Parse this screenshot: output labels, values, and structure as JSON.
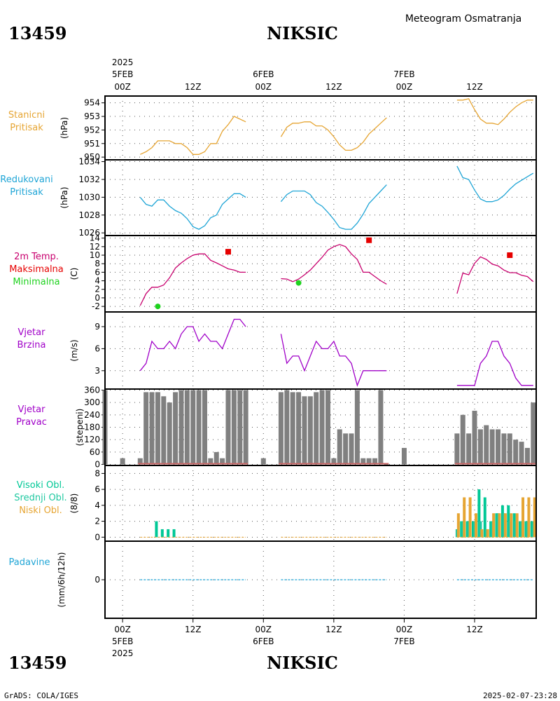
{
  "header": {
    "station_id": "13459",
    "station_name": "NIKSIC",
    "product": "Meteogram Osmatranja"
  },
  "time_axis": {
    "year": "2025",
    "days": [
      {
        "label": "5FEB",
        "hour": 0
      },
      {
        "label": "6FEB",
        "hour": 24
      },
      {
        "label": "7FEB",
        "hour": 48
      }
    ],
    "ticks": [
      {
        "label": "00Z",
        "hour": 0
      },
      {
        "label": "12Z",
        "hour": 12
      },
      {
        "label": "00Z",
        "hour": 24
      },
      {
        "label": "12Z",
        "hour": 36
      },
      {
        "label": "00Z",
        "hour": 48
      },
      {
        "label": "12Z",
        "hour": 60
      }
    ],
    "range_hours": [
      -3,
      70.5
    ]
  },
  "footer": {
    "left": "GrADS: COLA/IGES",
    "right": "2025-02-07-23:28"
  },
  "colors": {
    "pressure_station": "#e6a533",
    "pressure_reduced": "#1fa5d6",
    "temp_line": "#c8006e",
    "tmax": "#e60000",
    "tmin": "#1ed21e",
    "wind_speed": "#a000c8",
    "wind_dir": "#808080",
    "wind_base": "#c86464",
    "cloud_high": "#00c896",
    "cloud_mid": "#1ec8a0",
    "cloud_low": "#e6a533",
    "precip": "#1fa5d6",
    "grid": "#555555"
  },
  "chart_data": [
    {
      "id": "station_pressure",
      "type": "line",
      "title_lines": [
        "Stanicni",
        "Pritisak"
      ],
      "ylabel": "(hPa)",
      "ylim": [
        949.8,
        954.5
      ],
      "yticks": [
        950,
        951,
        952,
        953,
        954
      ],
      "series": [
        {
          "x": [
            3,
            4,
            5,
            6,
            7,
            8,
            9,
            10,
            11,
            12,
            13,
            14,
            15,
            16,
            17,
            18,
            19,
            20,
            21
          ],
          "y": [
            950.2,
            950.4,
            950.7,
            951.2,
            951.2,
            951.2,
            951.0,
            951.0,
            950.7,
            950.2,
            950.2,
            950.4,
            951.0,
            951.0,
            951.9,
            952.4,
            953.0,
            952.8,
            952.6
          ]
        },
        {
          "x": [
            27,
            28,
            29,
            30,
            31,
            32,
            33,
            34,
            35,
            36,
            37,
            38,
            39,
            40,
            41,
            42,
            43,
            44,
            45
          ],
          "y": [
            951.5,
            952.2,
            952.5,
            952.5,
            952.6,
            952.6,
            952.3,
            952.3,
            952.0,
            951.5,
            950.9,
            950.5,
            950.5,
            950.7,
            951.1,
            951.7,
            952.1,
            952.5,
            952.9
          ]
        },
        {
          "x": [
            57,
            58,
            59,
            60,
            61,
            62,
            63,
            64,
            65,
            66,
            67,
            68,
            69,
            70
          ],
          "y": [
            954.2,
            954.2,
            954.3,
            953.5,
            952.8,
            952.5,
            952.5,
            952.4,
            952.8,
            953.3,
            953.7,
            954.0,
            954.2,
            954.2
          ]
        }
      ]
    },
    {
      "id": "reduced_pressure",
      "type": "line",
      "title_lines": [
        "Redukovani",
        "Pritisak"
      ],
      "ylabel": "(hPa)",
      "ylim": [
        1025.7,
        1034.2
      ],
      "yticks": [
        1026,
        1028,
        1030,
        1032,
        1034
      ],
      "series": [
        {
          "x": [
            3,
            4,
            5,
            6,
            7,
            8,
            9,
            10,
            11,
            12,
            13,
            14,
            15,
            16,
            17,
            18,
            19,
            20,
            21
          ],
          "y": [
            1030.0,
            1029.2,
            1029.0,
            1029.7,
            1029.7,
            1029.0,
            1028.5,
            1028.2,
            1027.6,
            1026.7,
            1026.4,
            1026.8,
            1027.7,
            1028.0,
            1029.2,
            1029.8,
            1030.4,
            1030.4,
            1030.0
          ]
        },
        {
          "x": [
            27,
            28,
            29,
            30,
            31,
            32,
            33,
            34,
            35,
            36,
            37,
            38,
            39,
            40,
            41,
            42,
            43,
            44,
            45
          ],
          "y": [
            1029.5,
            1030.3,
            1030.7,
            1030.7,
            1030.7,
            1030.3,
            1029.4,
            1029.0,
            1028.3,
            1027.5,
            1026.6,
            1026.4,
            1026.4,
            1027.1,
            1028.1,
            1029.3,
            1030.0,
            1030.7,
            1031.4
          ]
        },
        {
          "x": [
            57,
            58,
            59,
            60,
            61,
            62,
            63,
            64,
            65,
            66,
            67,
            68,
            69,
            70
          ],
          "y": [
            1033.5,
            1032.2,
            1032.0,
            1030.8,
            1029.8,
            1029.5,
            1029.5,
            1029.7,
            1030.2,
            1030.9,
            1031.5,
            1031.9,
            1032.3,
            1032.7
          ]
        }
      ]
    },
    {
      "id": "temperature",
      "type": "line",
      "title_lines": [
        "2m Temp.",
        "Maksimalna",
        "Minimalna"
      ],
      "ylabel": "(C)",
      "ylim": [
        -3.3,
        14.6
      ],
      "yticks": [
        -2,
        0,
        2,
        4,
        6,
        8,
        10,
        12,
        14
      ],
      "series": [
        {
          "x": [
            3,
            4,
            5,
            6,
            7,
            8,
            9,
            10,
            11,
            12,
            13,
            14,
            15,
            16,
            17,
            18,
            19,
            20,
            21
          ],
          "y": [
            -1.8,
            1.0,
            2.5,
            2.5,
            3.0,
            4.7,
            7.0,
            8.2,
            9.2,
            10.0,
            10.3,
            10.3,
            8.8,
            8.2,
            7.5,
            6.8,
            6.5,
            6.0,
            6.0
          ]
        },
        {
          "x": [
            27,
            28,
            29,
            30,
            31,
            32,
            33,
            34,
            35,
            36,
            37,
            38,
            39,
            40,
            41,
            42,
            43,
            44,
            45
          ],
          "y": [
            4.5,
            4.4,
            3.8,
            4.4,
            5.4,
            6.5,
            8.0,
            9.5,
            11.2,
            12.0,
            12.5,
            12.0,
            10.3,
            9.0,
            6.0,
            6.0,
            5.0,
            4.0,
            3.2
          ]
        },
        {
          "x": [
            57,
            58,
            59,
            60,
            61,
            62,
            63,
            64,
            65,
            66,
            67,
            68,
            69,
            70
          ],
          "y": [
            1.0,
            5.8,
            5.4,
            8.1,
            9.6,
            9.0,
            7.9,
            7.5,
            6.5,
            5.9,
            5.9,
            5.3,
            5.0,
            3.8
          ]
        }
      ],
      "tmax": [
        {
          "x": 18,
          "y": 10.8
        },
        {
          "x": 42,
          "y": 13.5
        },
        {
          "x": 66,
          "y": 10.0
        }
      ],
      "tmin": [
        {
          "x": 6,
          "y": -2.0
        },
        {
          "x": 30,
          "y": 3.5
        }
      ]
    },
    {
      "id": "wind_speed",
      "type": "line",
      "title_lines": [
        "Vjetar",
        "Brzina"
      ],
      "ylabel": "(m/s)",
      "ylim": [
        0.5,
        11.0
      ],
      "yticks": [
        3,
        6,
        9
      ],
      "series": [
        {
          "x": [
            3,
            4,
            5,
            6,
            7,
            8,
            9,
            10,
            11,
            12,
            13,
            14,
            15,
            16,
            17,
            18,
            19,
            20,
            21
          ],
          "y": [
            3.0,
            4.0,
            7.0,
            6.0,
            6.0,
            7.0,
            6.0,
            8.0,
            9.0,
            9.0,
            7.0,
            8.0,
            7.0,
            7.0,
            6.0,
            8.0,
            10.0,
            10.0,
            9.0
          ]
        },
        {
          "x": [
            27,
            28,
            29,
            30,
            31,
            32,
            33,
            34,
            35,
            36,
            37,
            38,
            39,
            40,
            41,
            42,
            43,
            44,
            45
          ],
          "y": [
            8.0,
            4.0,
            5.0,
            5.0,
            3.0,
            5.0,
            7.0,
            6.0,
            6.0,
            7.0,
            5.0,
            5.0,
            4.0,
            1.0,
            3.0,
            3.0,
            3.0,
            3.0,
            3.0
          ]
        },
        {
          "x": [
            57,
            58,
            59,
            60,
            61,
            62,
            63,
            64,
            65,
            66,
            67,
            68,
            69,
            70
          ],
          "y": [
            1.0,
            1.0,
            1.0,
            1.0,
            4.0,
            5.0,
            7.0,
            7.0,
            5.0,
            4.0,
            2.0,
            1.0,
            1.0,
            1.0
          ]
        }
      ]
    },
    {
      "id": "wind_direction",
      "type": "bar",
      "title_lines": [
        "Vjetar",
        "Pravac"
      ],
      "ylabel": "(stepeni)",
      "ylim": [
        -5,
        365
      ],
      "yticks": [
        0,
        60,
        120,
        180,
        240,
        300,
        360
      ],
      "x": [
        -3,
        0,
        3,
        4,
        5,
        6,
        7,
        8,
        9,
        10,
        11,
        12,
        13,
        14,
        15,
        16,
        17,
        18,
        19,
        20,
        21,
        24,
        27,
        28,
        29,
        30,
        31,
        32,
        33,
        34,
        35,
        36,
        37,
        38,
        39,
        40,
        41,
        42,
        43,
        44,
        45,
        48,
        57,
        58,
        59,
        60,
        61,
        62,
        63,
        64,
        65,
        66,
        67,
        68,
        69,
        70
      ],
      "values": [
        360,
        30,
        30,
        350,
        350,
        350,
        330,
        300,
        350,
        360,
        360,
        360,
        360,
        360,
        30,
        60,
        30,
        360,
        360,
        360,
        360,
        30,
        350,
        360,
        350,
        350,
        330,
        330,
        350,
        360,
        360,
        30,
        170,
        150,
        150,
        360,
        30,
        30,
        30,
        360,
        0,
        80,
        150,
        240,
        150,
        260,
        170,
        190,
        170,
        170,
        150,
        150,
        120,
        110,
        80,
        300
      ]
    },
    {
      "id": "cloud_cover",
      "type": "bar",
      "title_lines": [
        "Visoki Obl.",
        "Srednji Obl.",
        "Niski Obl."
      ],
      "ylabel": "(8/8)",
      "ylim": [
        -0.5,
        9.0
      ],
      "yticks": [
        0,
        2,
        4,
        6,
        8
      ],
      "x": [
        6,
        7,
        8,
        9,
        57,
        58,
        59,
        60,
        61,
        62,
        63,
        64,
        65,
        66,
        67,
        68,
        69,
        70
      ],
      "series": [
        {
          "name": "Visoki Obl.",
          "values": [
            2,
            1,
            1,
            1,
            0,
            2,
            2,
            2,
            6,
            5,
            2,
            3,
            4,
            4,
            3,
            2,
            2,
            2
          ]
        },
        {
          "name": "Srednji Obl.",
          "values": [
            0,
            0,
            0,
            0,
            1,
            2,
            2,
            2,
            2,
            1,
            2,
            3,
            3,
            2,
            2,
            2,
            2,
            2
          ]
        },
        {
          "name": "Niski Obl.",
          "values": [
            0,
            0,
            0,
            0,
            3,
            5,
            5,
            3,
            1,
            1,
            3,
            3,
            3,
            3,
            3,
            5,
            5,
            5
          ]
        }
      ]
    },
    {
      "id": "precipitation",
      "type": "bar",
      "title_lines": [
        "Padavine"
      ],
      "ylabel": "(mm/6h/12h)",
      "ylim": [
        -5,
        5
      ],
      "yticks": [
        0
      ],
      "values_all_zero": true
    }
  ]
}
